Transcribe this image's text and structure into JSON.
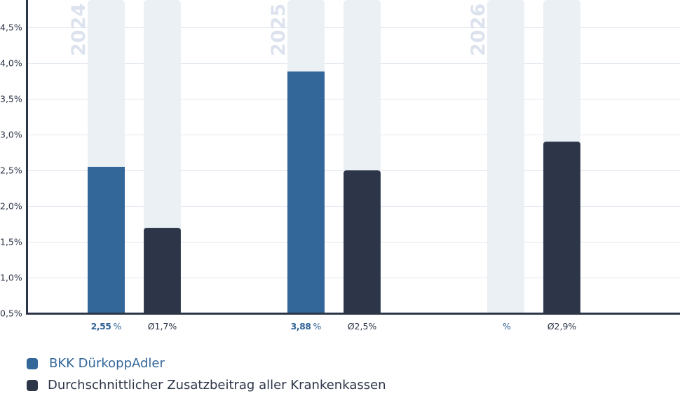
{
  "chart_data": {
    "type": "bar",
    "title": "",
    "xlabel": "",
    "ylabel": "",
    "ylim": [
      0.5,
      4.9
    ],
    "grid": true,
    "legend_position": "bottom-left",
    "y_ticks": [
      "0,5%",
      "1,0%",
      "1,5%",
      "2,0%",
      "2,5%",
      "3,0%",
      "3,5%",
      "4,0%",
      "4,5%"
    ],
    "categories": [
      "2024",
      "2025",
      "2026"
    ],
    "series": [
      {
        "name": "BKK DürkoppAdler",
        "color": "#336699",
        "values": [
          2.55,
          3.88,
          null
        ],
        "labels": [
          "2,55",
          "3,88",
          ""
        ],
        "unit": "%"
      },
      {
        "name": "Durchschnittlicher Zusatzbeitrag aller Krankenkassen",
        "color": "#2d3648",
        "values": [
          1.7,
          2.5,
          2.9
        ],
        "labels": [
          "Ø1,7%",
          "Ø2,5%",
          "Ø2,9%"
        ]
      }
    ]
  },
  "legend": {
    "brand": "BKK DürkoppAdler",
    "avg": "Durchschnittlicher Zusatzbeitrag aller Krankenkassen"
  },
  "colors": {
    "brand": "#336699",
    "avg": "#2d3648",
    "track": "#ebf0f5",
    "grid": "#e3e8f0",
    "year": "#dce3ee"
  }
}
